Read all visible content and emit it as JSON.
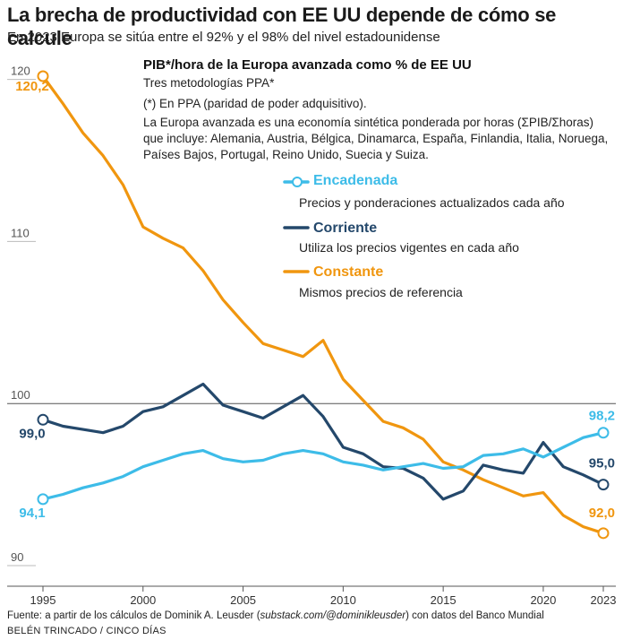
{
  "title": "La brecha de productividad con EE UU depende de cómo se calcule",
  "subtitle": "En 2023 Europa se sitúa entre el 92% y el 98% del nivel estadounidense",
  "info": {
    "title": "PIB*/hora de la Europa avanzada como % de EE UU",
    "subtitle": "Tres metodologías PPA*",
    "note": "(*) En PPA (paridad de poder adquisitivo).",
    "description": "La Europa avanzada es una economía sintética ponderada por horas (ΣPIB/Σhoras) que incluye: Alemania, Austria, Bélgica, Dinamarca, España, Finlandia, Italia, Noruega, Países Bajos, Portugal, Reino Unido, Suecia y Suiza."
  },
  "legend": [
    {
      "name": "Encadenada",
      "description": "Precios y ponderaciones actualizados cada año"
    },
    {
      "name": "Corriente",
      "description": "Utiliza los precios vigentes en cada año"
    },
    {
      "name": "Constante",
      "description": "Mismos precios de referencia"
    }
  ],
  "source": {
    "prefix": "Fuente: a partir de los cálculos de Dominik A. Leusder (",
    "url": "substack.com/@dominikleusder",
    "suffix": ") con datos del Banco Mundial"
  },
  "credit": "BELÉN TRINCADO / CINCO DÍAS",
  "colors": {
    "encadenada": "#3dbce8",
    "corriente": "#24486b",
    "constante": "#f0960f",
    "axis": "#555555",
    "grid": "#cccccc"
  },
  "chart_data": {
    "type": "line",
    "x": [
      1995,
      1996,
      1997,
      1998,
      1999,
      2000,
      2001,
      2002,
      2003,
      2004,
      2005,
      2006,
      2007,
      2008,
      2009,
      2010,
      2011,
      2012,
      2013,
      2014,
      2015,
      2016,
      2017,
      2018,
      2019,
      2020,
      2021,
      2022,
      2023
    ],
    "x_ticks": [
      1995,
      2000,
      2005,
      2010,
      2015,
      2020,
      2023
    ],
    "y_ticks": [
      120,
      110,
      100,
      90
    ],
    "ylim": [
      89.5,
      121.5
    ],
    "reference_line": 100,
    "series": [
      {
        "name": "Constante",
        "color": "#f0960f",
        "values": [
          120.2,
          118.5,
          116.7,
          115.3,
          113.5,
          110.9,
          110.2,
          109.6,
          108.2,
          106.4,
          105.0,
          103.7,
          103.3,
          102.9,
          103.9,
          101.5,
          100.2,
          98.9,
          98.5,
          97.8,
          96.4,
          95.9,
          95.3,
          94.8,
          94.3,
          94.5,
          93.1,
          92.4,
          92.0
        ],
        "start_label": "120,2",
        "end_label": "92,0"
      },
      {
        "name": "Corriente",
        "color": "#24486b",
        "values": [
          99.0,
          98.6,
          98.4,
          98.2,
          98.6,
          99.5,
          99.8,
          100.5,
          101.2,
          99.9,
          99.5,
          99.1,
          99.8,
          100.5,
          99.2,
          97.3,
          96.9,
          96.1,
          96.0,
          95.4,
          94.1,
          94.6,
          96.2,
          95.9,
          95.7,
          97.6,
          96.1,
          95.6,
          95.0
        ],
        "start_label": "99,0",
        "end_label": "95,0"
      },
      {
        "name": "Encadenada",
        "color": "#3dbce8",
        "values": [
          94.1,
          94.4,
          94.8,
          95.1,
          95.5,
          96.1,
          96.5,
          96.9,
          97.1,
          96.6,
          96.4,
          96.5,
          96.9,
          97.1,
          96.9,
          96.4,
          96.2,
          95.9,
          96.1,
          96.3,
          96.0,
          96.1,
          96.8,
          96.9,
          97.2,
          96.7,
          97.3,
          97.9,
          98.2
        ],
        "start_label": "94,1",
        "end_label": "98,2"
      }
    ]
  }
}
